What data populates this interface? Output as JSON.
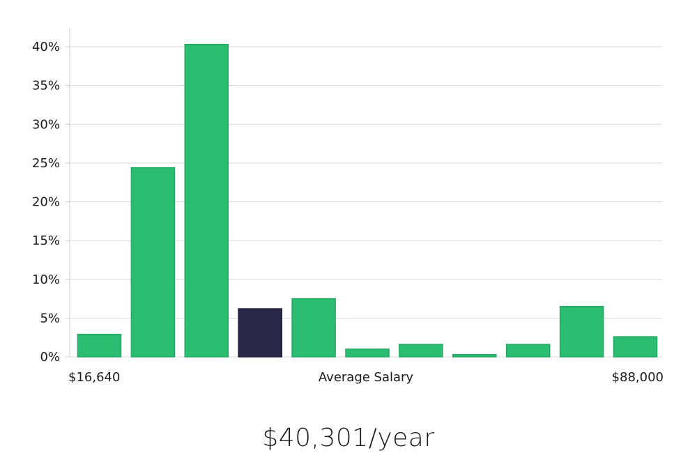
{
  "chart_data": {
    "type": "bar",
    "title": "",
    "xlabel": "Average Salary",
    "ylabel": "",
    "x_min_label": "$16,640",
    "x_max_label": "$88,000",
    "ylim": [
      0,
      42
    ],
    "yticks": [
      0,
      5,
      10,
      15,
      20,
      25,
      30,
      35,
      40
    ],
    "ytick_labels": [
      "0%",
      "5%",
      "10%",
      "15%",
      "20%",
      "25%",
      "30%",
      "35%",
      "40%"
    ],
    "values": [
      2.9,
      24.4,
      40.3,
      6.2,
      7.5,
      1.0,
      1.6,
      0.3,
      1.6,
      6.5,
      2.6
    ],
    "highlight_index": 3,
    "colors": {
      "bar": "#2bbd72",
      "bar_stroke": "#22a862",
      "highlight": "#2a2848",
      "grid": "#d9d9d9",
      "axis": "#cccccc"
    }
  },
  "summary": {
    "value": "$40,301/year"
  }
}
